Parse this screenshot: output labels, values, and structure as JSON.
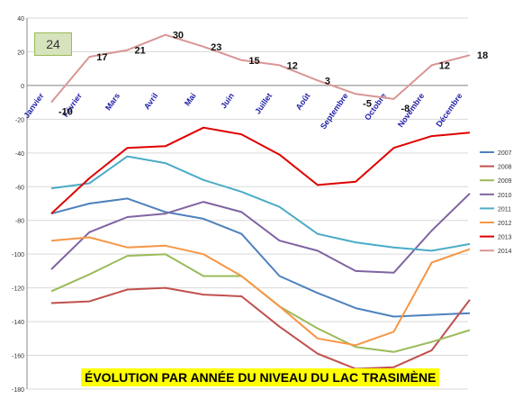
{
  "badge": "24",
  "chart_data": {
    "type": "line",
    "title": "ÉVOLUTION PAR ANNÉE DU NIVEAU DU LAC TRASIMÈNE",
    "xlabel": "",
    "ylabel": "",
    "categories": [
      "Janvier",
      "Février",
      "Mars",
      "Avril",
      "Mai",
      "Juin",
      "Juillet",
      "Août",
      "Septembre",
      "Octobre",
      "Novembre",
      "Décembre"
    ],
    "ylim": [
      -180,
      40
    ],
    "yticks": [
      -180,
      -160,
      -140,
      -120,
      -100,
      -80,
      -60,
      -40,
      -20,
      0,
      20,
      40
    ],
    "grid": true,
    "legend_position": "right",
    "series": [
      {
        "name": "2007",
        "color": "#4f81bd",
        "values": [
          -76,
          -70,
          -67,
          -75,
          -79,
          -88,
          -113,
          -123,
          -132,
          -137,
          -136,
          -135
        ]
      },
      {
        "name": "2008",
        "color": "#c0504d",
        "values": [
          -129,
          -128,
          -121,
          -120,
          -124,
          -125,
          -143,
          -159,
          -168,
          -167,
          -157,
          -127
        ]
      },
      {
        "name": "2009",
        "color": "#9bbb59",
        "values": [
          -122,
          -112,
          -101,
          -100,
          -113,
          -113,
          -131,
          -144,
          -155,
          -158,
          -152,
          -145
        ]
      },
      {
        "name": "2010",
        "color": "#8064a2",
        "values": [
          -109,
          -87,
          -78,
          -76,
          -69,
          -75,
          -92,
          -98,
          -110,
          -111,
          -86,
          -64
        ]
      },
      {
        "name": "2011",
        "color": "#4bacc6",
        "values": [
          -61,
          -58,
          -42,
          -46,
          -56,
          -63,
          -72,
          -88,
          -93,
          -96,
          -98,
          -94
        ]
      },
      {
        "name": "2012",
        "color": "#f79646",
        "values": [
          -92,
          -90,
          -96,
          -95,
          -100,
          -113,
          -131,
          -150,
          -154,
          -146,
          -105,
          -97
        ]
      },
      {
        "name": "2013",
        "color": "#e00000",
        "values": [
          -76,
          -55,
          -37,
          -36,
          -25,
          -29,
          -41,
          -59,
          -57,
          -37,
          -30,
          -28
        ]
      },
      {
        "name": "2014",
        "color": "#d99694",
        "values": [
          -10,
          17,
          21,
          30,
          23,
          15,
          12,
          3,
          -5,
          -8,
          12,
          18
        ]
      }
    ],
    "data_labels": {
      "series": "2014",
      "values": [
        "-10",
        "17",
        "21",
        "30",
        "23",
        "15",
        "12",
        "3",
        "-5",
        "-8",
        "12",
        "18"
      ]
    }
  }
}
